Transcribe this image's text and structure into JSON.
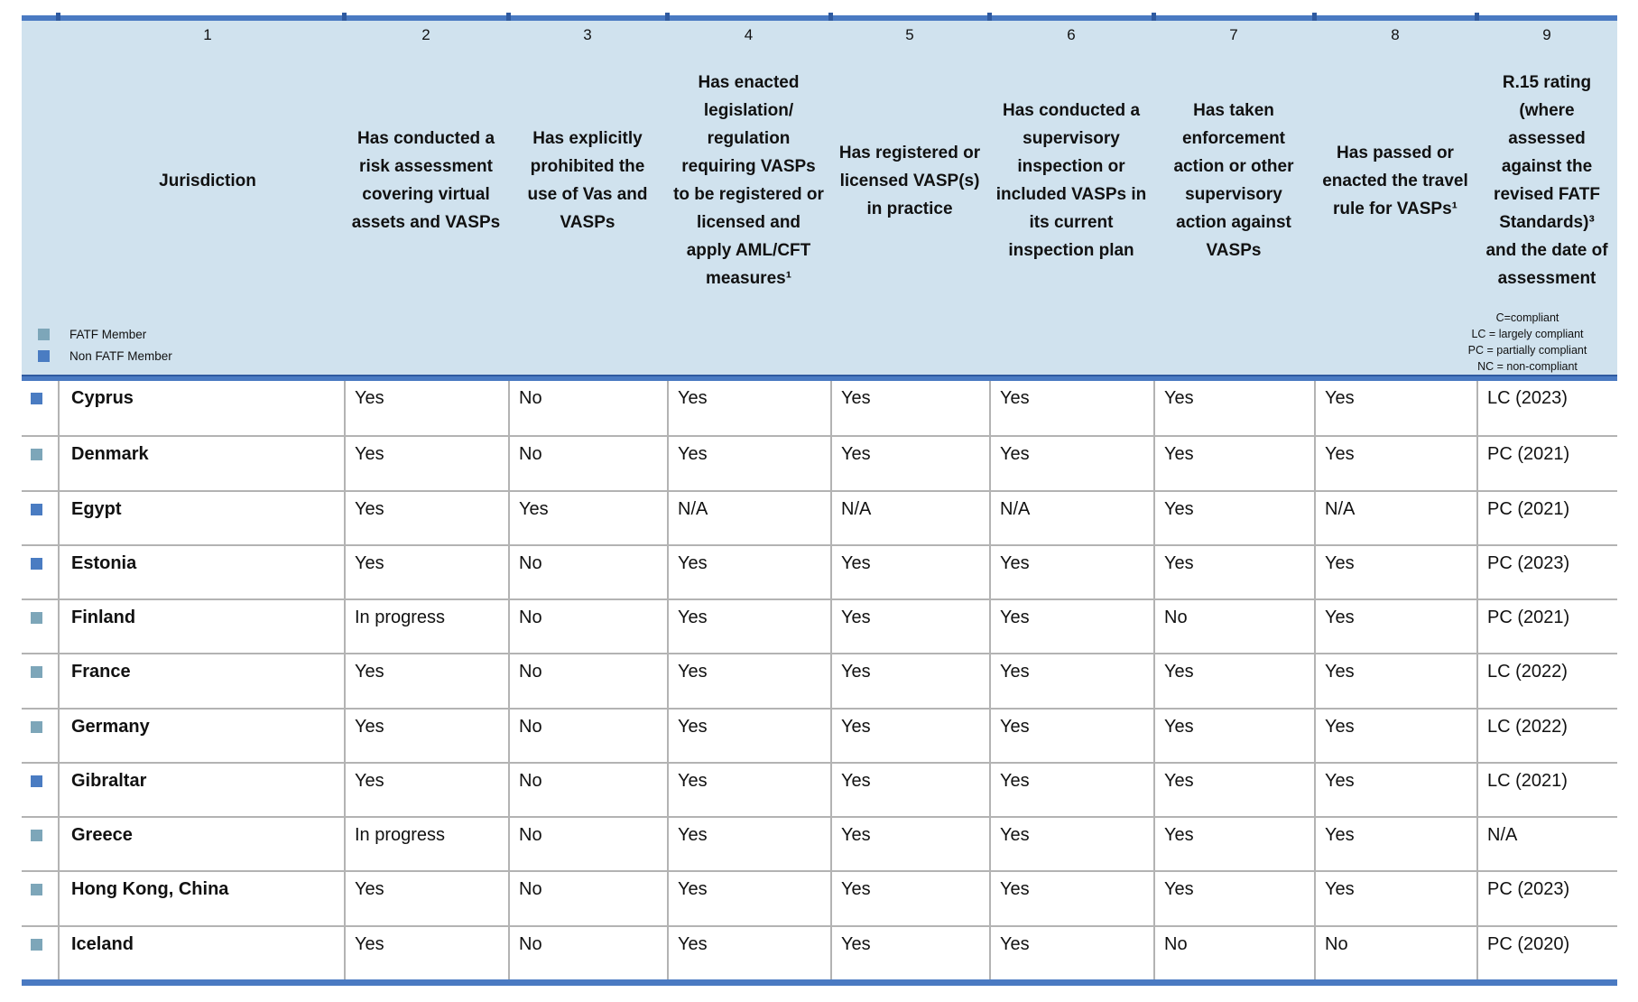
{
  "table": {
    "column_numbers": [
      "1",
      "2",
      "3",
      "4",
      "5",
      "6",
      "7",
      "8",
      "9"
    ],
    "column_headers": [
      "Jurisdiction",
      "Has conducted a risk assessment covering virtual assets and VASPs",
      "Has explicitly prohibited the use of Vas and VASPs",
      "Has enacted legislation/ regulation requiring VASPs to be registered or licensed and apply AML/CFT measures¹",
      "Has registered or licensed VASP(s) in practice",
      "Has conducted a supervisory inspection or included VASPs in its current inspection plan",
      "Has taken enforcement action or other supervisory action against VASPs",
      "Has passed or enacted the travel rule for VASPs¹",
      "R.15 rating (where assessed against the revised FATF Standards)³ and the date of assessment"
    ],
    "member_legend": [
      {
        "label": "FATF Member",
        "type": "member"
      },
      {
        "label": "Non FATF Member",
        "type": "nonmember"
      }
    ],
    "rating_legend": [
      "C=compliant",
      "LC = largely compliant",
      "PC = partially compliant",
      "NC = non-compliant"
    ],
    "rows": [
      {
        "jurisdiction": "Cyprus",
        "fatf_member": false,
        "values": [
          "Yes",
          "No",
          "Yes",
          "Yes",
          "Yes",
          "Yes",
          "Yes"
        ],
        "rating": "LC (2023)"
      },
      {
        "jurisdiction": "Denmark",
        "fatf_member": true,
        "values": [
          "Yes",
          "No",
          "Yes",
          "Yes",
          "Yes",
          "Yes",
          "Yes"
        ],
        "rating": "PC (2021)"
      },
      {
        "jurisdiction": "Egypt",
        "fatf_member": false,
        "values": [
          "Yes",
          "Yes",
          "N/A",
          "N/A",
          "N/A",
          "Yes",
          "N/A"
        ],
        "rating": "PC (2021)"
      },
      {
        "jurisdiction": "Estonia",
        "fatf_member": false,
        "values": [
          "Yes",
          "No",
          "Yes",
          "Yes",
          "Yes",
          "Yes",
          "Yes"
        ],
        "rating": "PC (2023)"
      },
      {
        "jurisdiction": "Finland",
        "fatf_member": true,
        "values": [
          "In progress",
          "No",
          "Yes",
          "Yes",
          "Yes",
          "No",
          "Yes"
        ],
        "rating": "PC (2021)"
      },
      {
        "jurisdiction": "France",
        "fatf_member": true,
        "values": [
          "Yes",
          "No",
          "Yes",
          "Yes",
          "Yes",
          "Yes",
          "Yes"
        ],
        "rating": "LC (2022)"
      },
      {
        "jurisdiction": "Germany",
        "fatf_member": true,
        "values": [
          "Yes",
          "No",
          "Yes",
          "Yes",
          "Yes",
          "Yes",
          "Yes"
        ],
        "rating": "LC (2022)"
      },
      {
        "jurisdiction": "Gibraltar",
        "fatf_member": false,
        "values": [
          "Yes",
          "No",
          "Yes",
          "Yes",
          "Yes",
          "Yes",
          "Yes"
        ],
        "rating": "LC (2021)"
      },
      {
        "jurisdiction": "Greece",
        "fatf_member": true,
        "values": [
          "In progress",
          "No",
          "Yes",
          "Yes",
          "Yes",
          "Yes",
          "Yes"
        ],
        "rating": "N/A"
      },
      {
        "jurisdiction": "Hong Kong, China",
        "fatf_member": true,
        "values": [
          "Yes",
          "No",
          "Yes",
          "Yes",
          "Yes",
          "Yes",
          "Yes"
        ],
        "rating": "PC (2023)"
      },
      {
        "jurisdiction": "Iceland",
        "fatf_member": true,
        "values": [
          "Yes",
          "No",
          "Yes",
          "Yes",
          "Yes",
          "No",
          "No"
        ],
        "rating": "PC (2020)"
      }
    ]
  },
  "colors": {
    "accent": "#4a7ac2",
    "accent_dark": "#2f5aa0",
    "header_bg": "#d0e2ee",
    "member": "#7da6b9",
    "nonmember": "#4a7cc2",
    "gridline": "#b3b3b3",
    "text": "#111111"
  }
}
